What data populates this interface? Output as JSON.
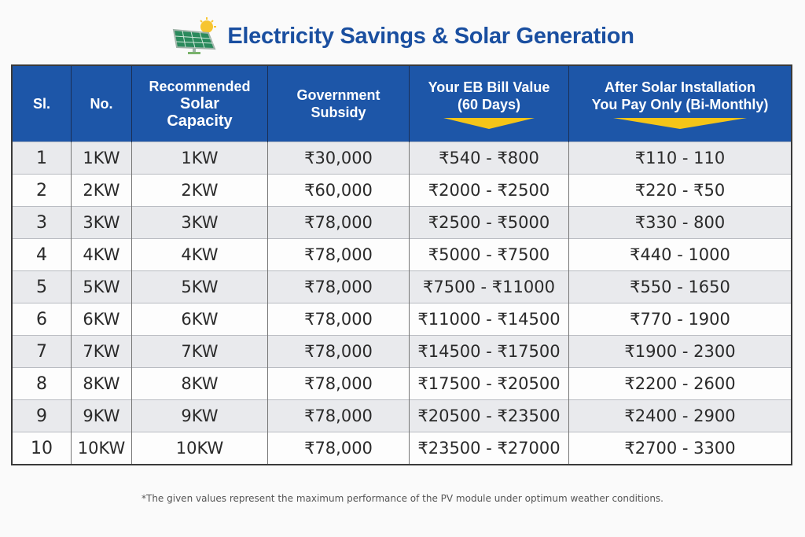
{
  "title": "Electricity Savings & Solar Generation",
  "icon": "solar-panel-icon",
  "colors": {
    "header_bg": "#1d56a8",
    "title": "#1a4fa0",
    "arrow": "#f5c518"
  },
  "headers": [
    "Sl.",
    "No.",
    "Recommended Solar Capacity",
    "Government Subsidy",
    "Your EB Bill Value (60 Days)",
    "After Solar Installation You Pay Only (Bi-Monthly)"
  ],
  "header_lines": {
    "capacity": [
      "Recommended",
      "Solar",
      "Capacity"
    ],
    "subsidy": [
      "Government",
      "Subsidy"
    ],
    "bill": [
      "Your EB Bill Value",
      "(60 Days)"
    ],
    "after": [
      "After Solar Installation",
      "You Pay Only (Bi-Monthly)"
    ]
  },
  "rows": [
    [
      "1",
      "1KW",
      "1KW",
      "₹30,000",
      "₹540 - ₹800",
      "₹110 - 110"
    ],
    [
      "2",
      "2KW",
      "2KW",
      "₹60,000",
      "₹2000 - ₹2500",
      "₹220 - ₹50"
    ],
    [
      "3",
      "3KW",
      "3KW",
      "₹78,000",
      "₹2500 - ₹5000",
      "₹330 - 800"
    ],
    [
      "4",
      "4KW",
      "4KW",
      "₹78,000",
      "₹5000 - ₹7500",
      "₹440 - 1000"
    ],
    [
      "5",
      "5KW",
      "5KW",
      "₹78,000",
      "₹7500 - ₹11000",
      "₹550 - 1650"
    ],
    [
      "6",
      "6KW",
      "6KW",
      "₹78,000",
      "₹11000 - ₹14500",
      "₹770 - 1900"
    ],
    [
      "7",
      "7KW",
      "7KW",
      "₹78,000",
      "₹14500 - ₹17500",
      "₹1900 - 2300"
    ],
    [
      "8",
      "8KW",
      "8KW",
      "₹78,000",
      "₹17500 - ₹20500",
      "₹2200 - 2600"
    ],
    [
      "9",
      "9KW",
      "9KW",
      "₹78,000",
      "₹20500 - ₹23500",
      "₹2400 - 2900"
    ],
    [
      "10",
      "10KW",
      "10KW",
      "₹78,000",
      "₹23500 - ₹27000",
      "₹2700 - 3300"
    ]
  ],
  "footnote": "*The given values represent the maximum performance of the PV module under optimum weather conditions."
}
